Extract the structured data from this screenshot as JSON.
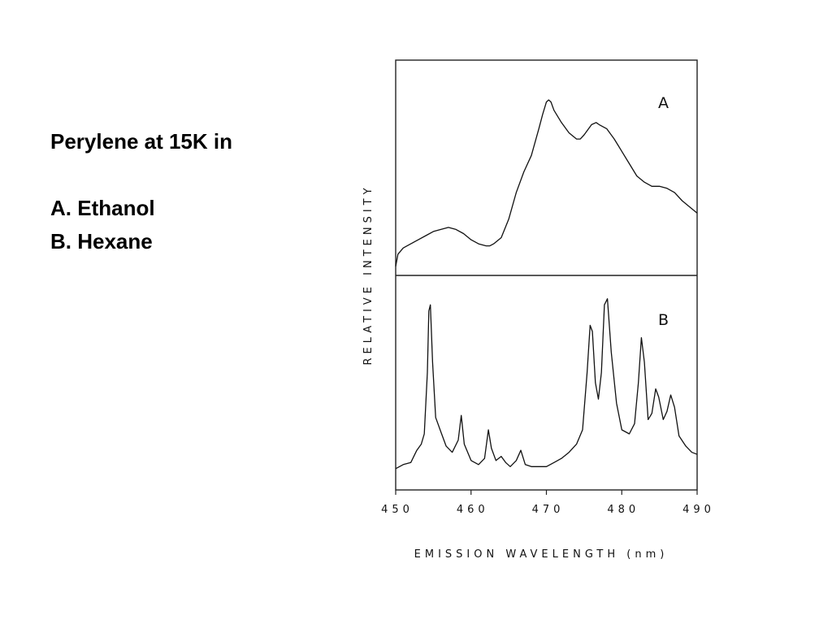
{
  "slide": {
    "title": "Perylene at 15K in",
    "items": [
      "A. Ethanol",
      "B. Hexane"
    ]
  },
  "chart_data": {
    "type": "line",
    "xlabel": "EMISSION WAVELENGTH (nm)",
    "ylabel": "RELATIVE INTENSITY",
    "xlim": [
      450,
      490
    ],
    "xticks": [
      450,
      460,
      470,
      480,
      490
    ],
    "grid": false,
    "panels": [
      {
        "label": "A",
        "series": [
          {
            "x": [
              450,
              450.3,
              451,
              452,
              453,
              454,
              455,
              456,
              457,
              458,
              459,
              460,
              461,
              462,
              462.5,
              463,
              464,
              465,
              466,
              467,
              468,
              469,
              469.5,
              470,
              470.3,
              470.6,
              471,
              472,
              473,
              474,
              474.5,
              475,
              476,
              476.6,
              477,
              478,
              479,
              480,
              481,
              482,
              483,
              484,
              485,
              486,
              487,
              488,
              489,
              490
            ],
            "y": [
              0.02,
              0.08,
              0.11,
              0.13,
              0.15,
              0.17,
              0.19,
              0.2,
              0.21,
              0.2,
              0.18,
              0.15,
              0.13,
              0.12,
              0.12,
              0.13,
              0.16,
              0.25,
              0.38,
              0.48,
              0.56,
              0.69,
              0.76,
              0.82,
              0.83,
              0.82,
              0.78,
              0.72,
              0.67,
              0.64,
              0.64,
              0.66,
              0.71,
              0.72,
              0.71,
              0.69,
              0.64,
              0.58,
              0.52,
              0.46,
              0.43,
              0.41,
              0.41,
              0.4,
              0.38,
              0.34,
              0.31,
              0.28
            ]
          }
        ]
      },
      {
        "label": "B",
        "series": [
          {
            "x": [
              450,
              451,
              452,
              452.8,
              453.4,
              453.8,
              454.2,
              454.4,
              454.6,
              454.9,
              455.3,
              456,
              456.7,
              457.5,
              458.3,
              458.7,
              459.1,
              460,
              461,
              461.8,
              462.3,
              462.7,
              463.3,
              464,
              464.6,
              465.2,
              466,
              466.6,
              467.2,
              468,
              469,
              470,
              471,
              472,
              473,
              474,
              474.8,
              475.4,
              475.8,
              476.1,
              476.5,
              476.9,
              477.3,
              477.7,
              478.1,
              478.6,
              479.3,
              480,
              481,
              481.7,
              482.2,
              482.6,
              483,
              483.5,
              484,
              484.5,
              484.9,
              485.5,
              486,
              486.5,
              487,
              487.6,
              488.5,
              489.3,
              490
            ],
            "y": [
              0.08,
              0.1,
              0.11,
              0.17,
              0.2,
              0.25,
              0.55,
              0.85,
              0.88,
              0.6,
              0.33,
              0.26,
              0.19,
              0.16,
              0.22,
              0.34,
              0.2,
              0.12,
              0.1,
              0.13,
              0.27,
              0.18,
              0.12,
              0.14,
              0.11,
              0.09,
              0.12,
              0.17,
              0.1,
              0.09,
              0.09,
              0.09,
              0.11,
              0.13,
              0.16,
              0.2,
              0.27,
              0.55,
              0.78,
              0.75,
              0.5,
              0.42,
              0.55,
              0.88,
              0.91,
              0.65,
              0.4,
              0.27,
              0.25,
              0.3,
              0.5,
              0.72,
              0.6,
              0.32,
              0.35,
              0.47,
              0.43,
              0.32,
              0.36,
              0.44,
              0.38,
              0.24,
              0.19,
              0.16,
              0.15
            ]
          }
        ]
      }
    ]
  }
}
